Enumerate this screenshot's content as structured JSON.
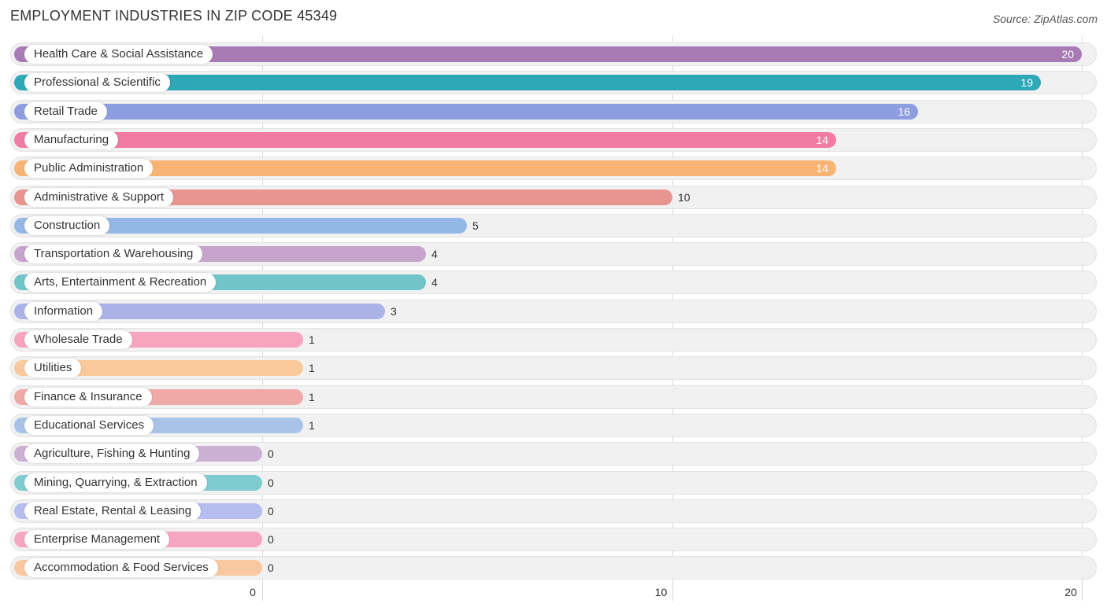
{
  "chart_data": {
    "type": "bar",
    "orientation": "horizontal",
    "title": "EMPLOYMENT INDUSTRIES IN ZIP CODE 45349",
    "source": "Source: ZipAtlas.com",
    "xlim": [
      0,
      20
    ],
    "ticks": [
      "0",
      "10",
      "20"
    ],
    "grid": true,
    "categories": [
      "Health Care & Social Assistance",
      "Professional & Scientific",
      "Retail Trade",
      "Manufacturing",
      "Public Administration",
      "Administrative & Support",
      "Construction",
      "Transportation & Warehousing",
      "Arts, Entertainment & Recreation",
      "Information",
      "Wholesale Trade",
      "Utilities",
      "Finance & Insurance",
      "Educational Services",
      "Agriculture, Fishing & Hunting",
      "Mining, Quarrying, & Extraction",
      "Real Estate, Rental & Leasing",
      "Enterprise Management",
      "Accommodation & Food Services"
    ],
    "values": [
      20,
      19,
      16,
      14,
      14,
      10,
      5,
      4,
      4,
      3,
      1,
      1,
      1,
      1,
      0,
      0,
      0,
      0,
      0
    ],
    "colors": [
      "#a97bb5",
      "#2ea8b6",
      "#8c9ee0",
      "#f27ba3",
      "#f8b474",
      "#e89590",
      "#93b8e5",
      "#c6a4cc",
      "#6fc5c9",
      "#aab2e8",
      "#f7a5bf",
      "#f9c99c",
      "#efaaa8",
      "#a7c4e8",
      "#cbb0d4",
      "#7ecccf",
      "#b6bdef",
      "#f7a6c1",
      "#f9c8a0"
    ]
  }
}
